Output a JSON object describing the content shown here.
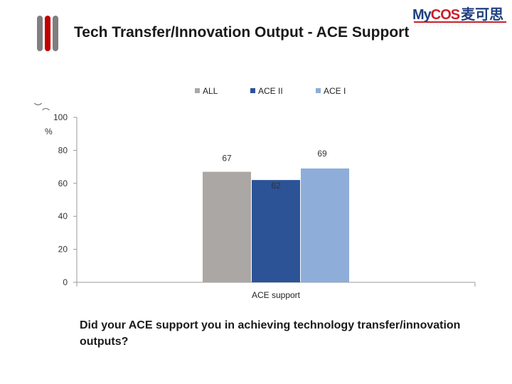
{
  "header": {
    "title": "Tech Transfer/Innovation Output - ACE Support"
  },
  "logo": {
    "brand_my": "My",
    "brand_cos": "COS",
    "brand_cn": "麦可思",
    "accent_color": "#c8202a",
    "brand_color": "#1f3f7f"
  },
  "chart_data": {
    "type": "bar",
    "categories": [
      "ACE support"
    ],
    "series": [
      {
        "name": "ALL",
        "values": [
          67
        ],
        "color": "#aba7a5"
      },
      {
        "name": "ACE II",
        "values": [
          62
        ],
        "color": "#2b5396"
      },
      {
        "name": "ACE I",
        "values": [
          69
        ],
        "color": "#8eadd9"
      }
    ],
    "ylabel": "%",
    "ylim": [
      0,
      100
    ],
    "yticks": [
      0,
      20,
      40,
      60,
      80,
      100
    ],
    "grid": false,
    "legend_position": "top"
  },
  "unit_glyph": "︶︵",
  "footer": {
    "question": "Did your ACE support you in achieving technology transfer/innovation outputs?"
  }
}
